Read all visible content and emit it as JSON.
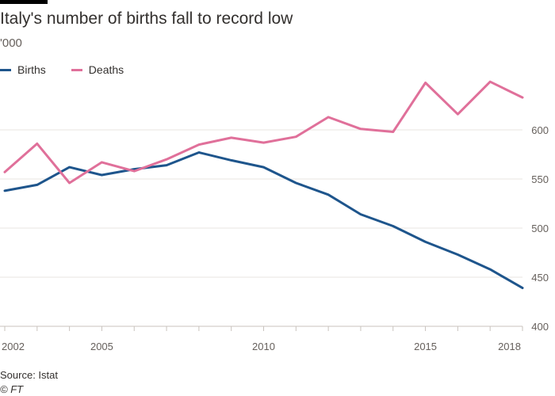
{
  "header": {
    "title": "Italy's number of births fall to record low",
    "subtitle": "'000"
  },
  "footer": {
    "source": "Source: Istat",
    "credit": "© FT"
  },
  "colors": {
    "births": "#1e558c",
    "deaths": "#e0709a",
    "grid": "#e9e4e0",
    "axis_text": "#66605c",
    "brand_bar": "#000000"
  },
  "chart_data": {
    "type": "line",
    "title": "Italy's number of births fall to record low",
    "ylabel": "'000",
    "xlabel": "",
    "x": [
      2002,
      2003,
      2004,
      2005,
      2006,
      2007,
      2008,
      2009,
      2010,
      2011,
      2012,
      2013,
      2014,
      2015,
      2016,
      2017,
      2018
    ],
    "series": [
      {
        "name": "Births",
        "values": [
          538,
          544,
          562,
          554,
          560,
          564,
          577,
          569,
          562,
          546,
          534,
          514,
          502,
          486,
          473,
          458,
          439
        ]
      },
      {
        "name": "Deaths",
        "values": [
          557,
          586,
          546,
          567,
          558,
          570,
          585,
          592,
          587,
          593,
          613,
          601,
          598,
          648,
          616,
          649,
          633
        ]
      }
    ],
    "x_ticks": [
      "2002",
      "2005",
      "2010",
      "2015",
      "2018"
    ],
    "y_ticks": [
      "400",
      "450",
      "500",
      "550",
      "600"
    ],
    "xlim": [
      2002,
      2018
    ],
    "ylim": [
      400,
      650
    ],
    "grid": true,
    "y_axis_side": "right",
    "legend_position": "top-left"
  }
}
